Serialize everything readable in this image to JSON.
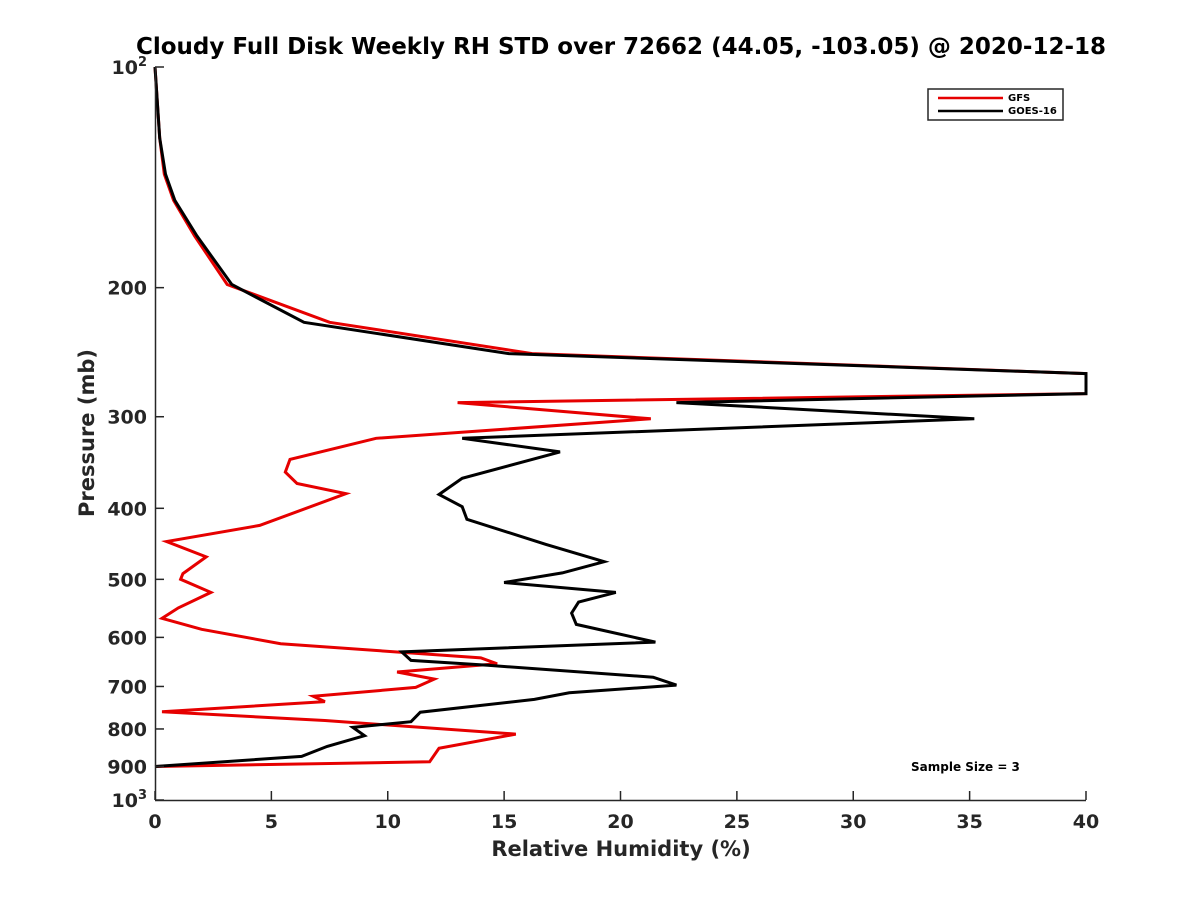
{
  "chart_data": {
    "type": "line",
    "title": "Cloudy Full Disk Weekly RH STD over 72662 (44.05, -103.05) @ 2020-12-18",
    "xlabel": "Relative Humidity (%)",
    "ylabel": "Pressure (mb)",
    "xlim": [
      0,
      40
    ],
    "ylim": [
      100,
      1000
    ],
    "yscale": "log",
    "y_reversed": true,
    "grid": false,
    "legend_position": "top-right",
    "x_ticks": [
      0,
      5,
      10,
      15,
      20,
      25,
      30,
      35,
      40
    ],
    "x_tick_labels": [
      "0",
      "5",
      "10",
      "15",
      "20",
      "25",
      "30",
      "35",
      "40"
    ],
    "y_ticks": [
      100,
      200,
      300,
      400,
      500,
      600,
      700,
      800,
      900,
      1000
    ],
    "y_tick_labels": [
      {
        "base": "10",
        "exp": "2"
      },
      {
        "base": "200"
      },
      {
        "base": "300"
      },
      {
        "base": "400"
      },
      {
        "base": "500"
      },
      {
        "base": "600"
      },
      {
        "base": "700"
      },
      {
        "base": "800"
      },
      {
        "base": "900"
      },
      {
        "base": "10",
        "exp": "3"
      }
    ],
    "annotation": "Sample Size = 3",
    "series": [
      {
        "name": "GFS",
        "color": "#e60000",
        "x": [
          0,
          0.2,
          0.4,
          0.8,
          1.7,
          3.1,
          7.5,
          16.2,
          40,
          40,
          13,
          21.3,
          9.5,
          5.8,
          5.6,
          6.1,
          8.2,
          4.5,
          0.5,
          2.2,
          1.2,
          1.1,
          2.4,
          1,
          0.3,
          2,
          5.4,
          14,
          14.7,
          10.4,
          12,
          11.2,
          6.8,
          7.3,
          0.3,
          7.3,
          15.5,
          12.2,
          11.8,
          0
        ],
        "y": [
          100,
          125,
          140,
          152,
          170,
          198,
          223,
          246,
          262,
          279,
          287,
          302,
          321,
          343,
          357,
          370,
          382,
          422,
          444,
          466,
          491,
          500,
          521,
          547,
          565,
          585,
          612,
          640,
          652,
          669,
          684,
          702,
          722,
          734,
          758,
          779,
          813,
          850,
          887,
          900
        ]
      },
      {
        "name": "GOES-16",
        "color": "#000000",
        "x": [
          0,
          0.2,
          0.45,
          0.85,
          1.8,
          3.3,
          6.4,
          15.2,
          40,
          40,
          22.4,
          35.2,
          13.2,
          17.4,
          13.2,
          12.2,
          13.2,
          13.4,
          16.8,
          19.3,
          17.5,
          15,
          19.8,
          18.2,
          17.9,
          18.1,
          21.5,
          10.6,
          11,
          14.3,
          21.4,
          22.4,
          17.8,
          16.3,
          11.4,
          11,
          8.5,
          9,
          7.4,
          6.3,
          0
        ],
        "y": [
          100,
          125,
          140,
          152,
          170,
          198,
          223,
          246,
          262,
          279,
          287,
          302,
          321,
          335,
          364,
          383,
          398,
          414,
          448,
          473,
          490,
          505,
          521,
          537,
          556,
          576,
          609,
          628,
          645,
          655,
          680,
          697,
          714,
          729,
          759,
          782,
          796,
          817,
          845,
          872,
          900
        ]
      }
    ]
  }
}
